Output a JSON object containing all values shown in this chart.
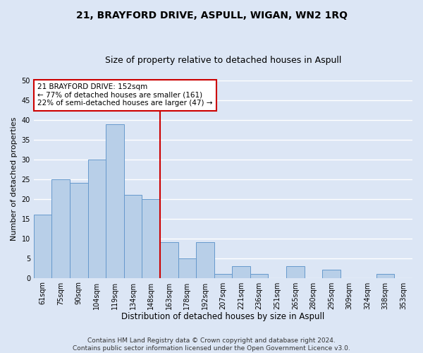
{
  "title": "21, BRAYFORD DRIVE, ASPULL, WIGAN, WN2 1RQ",
  "subtitle": "Size of property relative to detached houses in Aspull",
  "xlabel": "Distribution of detached houses by size in Aspull",
  "ylabel": "Number of detached properties",
  "categories": [
    "61sqm",
    "75sqm",
    "90sqm",
    "104sqm",
    "119sqm",
    "134sqm",
    "148sqm",
    "163sqm",
    "178sqm",
    "192sqm",
    "207sqm",
    "221sqm",
    "236sqm",
    "251sqm",
    "265sqm",
    "280sqm",
    "295sqm",
    "309sqm",
    "324sqm",
    "338sqm",
    "353sqm"
  ],
  "values": [
    16,
    25,
    24,
    30,
    39,
    21,
    20,
    9,
    5,
    9,
    1,
    3,
    1,
    0,
    3,
    0,
    2,
    0,
    0,
    1,
    0
  ],
  "bar_color": "#b8cfe8",
  "bar_edge_color": "#6699cc",
  "background_color": "#dce6f5",
  "grid_color": "#ffffff",
  "ylim": [
    0,
    50
  ],
  "yticks": [
    0,
    5,
    10,
    15,
    20,
    25,
    30,
    35,
    40,
    45,
    50
  ],
  "vline_x": 6.5,
  "vline_color": "#cc0000",
  "annotation_text": "21 BRAYFORD DRIVE: 152sqm\n← 77% of detached houses are smaller (161)\n22% of semi-detached houses are larger (47) →",
  "annotation_box_color": "#ffffff",
  "annotation_box_edge_color": "#cc0000",
  "footer_line1": "Contains HM Land Registry data © Crown copyright and database right 2024.",
  "footer_line2": "Contains public sector information licensed under the Open Government Licence v3.0.",
  "title_fontsize": 10,
  "subtitle_fontsize": 9,
  "xlabel_fontsize": 8.5,
  "ylabel_fontsize": 8,
  "tick_fontsize": 7,
  "annotation_fontsize": 7.5,
  "footer_fontsize": 6.5
}
